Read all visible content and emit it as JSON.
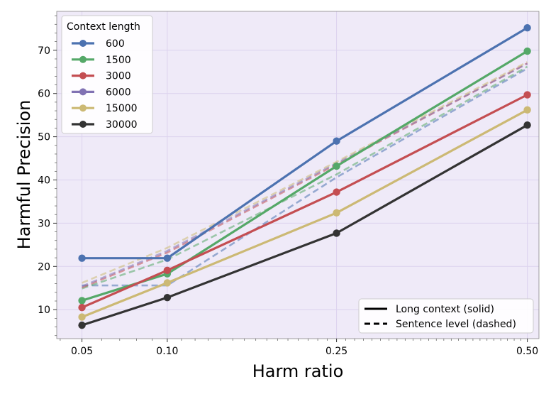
{
  "chart_data": {
    "type": "line",
    "xlabel": "Harm ratio",
    "ylabel": "Harmful Precision",
    "x": [
      0.05,
      0.1,
      0.25,
      0.5
    ],
    "x_tick_labels": [
      "0.05",
      "0.10",
      "0.25",
      "0.50"
    ],
    "y_ticks": [
      10,
      20,
      30,
      40,
      50,
      60,
      70
    ],
    "xlim": [
      0.0385,
      0.518
    ],
    "ylim": [
      3.3,
      79
    ],
    "grid": true,
    "background_color": "#efeaf8",
    "grid_color": "#dcd2ee",
    "legend_title": "Context length",
    "legend_position": "top-left",
    "style_legend_position": "bottom-right",
    "style_legend": [
      {
        "label": "Long context (solid)",
        "style": "solid"
      },
      {
        "label": "Sentence level (dashed)",
        "style": "dashed"
      }
    ],
    "series": [
      {
        "name": "600",
        "color": "#4c72b0",
        "solid": [
          21.9,
          21.9,
          49.0,
          75.2
        ],
        "dashed": [
          15.6,
          15.6,
          40.6,
          65.8
        ]
      },
      {
        "name": "1500",
        "color": "#55a868",
        "solid": [
          12.1,
          18.3,
          43.2,
          69.8
        ],
        "dashed": [
          14.9,
          21.6,
          41.3,
          66.2
        ]
      },
      {
        "name": "3000",
        "color": "#c44e52",
        "solid": [
          10.5,
          19.1,
          37.2,
          59.7
        ],
        "dashed": [
          15.1,
          23.2,
          43.6,
          67.0
        ]
      },
      {
        "name": "6000",
        "color": "#8172b3",
        "solid": [
          null,
          null,
          null,
          null
        ],
        "dashed": [
          15.4,
          23.6,
          43.9,
          66.9
        ]
      },
      {
        "name": "15000",
        "color": "#ccb974",
        "solid": [
          8.3,
          16.2,
          32.4,
          56.2
        ],
        "dashed": [
          16.2,
          24.3,
          44.2,
          67.3
        ]
      },
      {
        "name": "30000",
        "color": "#333333",
        "solid": [
          6.4,
          12.8,
          27.7,
          52.7
        ],
        "dashed": [
          null,
          null,
          null,
          null
        ]
      }
    ]
  }
}
